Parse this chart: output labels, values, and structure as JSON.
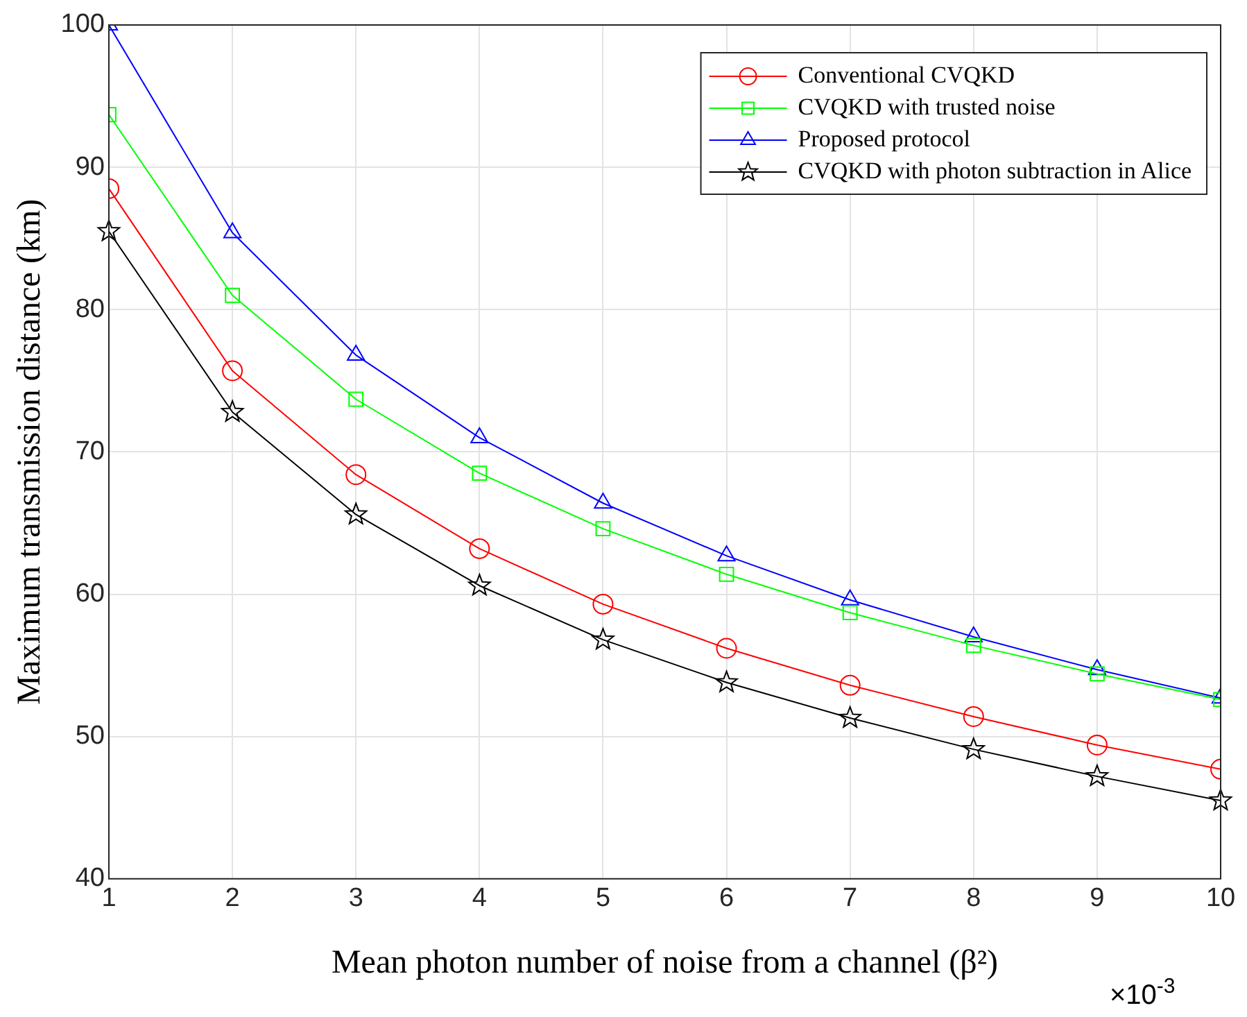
{
  "chart_data": {
    "type": "line",
    "xlabel": "Mean photon number of noise from a channel (β²)",
    "ylabel": "Maximum transmission distance (km)",
    "x": [
      1,
      2,
      3,
      4,
      5,
      6,
      7,
      8,
      9,
      10
    ],
    "series": [
      {
        "name": "Conventional CVQKD",
        "color": "#ff0000",
        "marker": "circle",
        "values": [
          88.5,
          75.7,
          68.4,
          63.2,
          59.3,
          56.2,
          53.6,
          51.4,
          49.4,
          47.7
        ]
      },
      {
        "name": "CVQKD with trusted noise",
        "color": "#00ff00",
        "marker": "square",
        "values": [
          93.7,
          81.0,
          73.7,
          68.5,
          64.6,
          61.4,
          58.7,
          56.4,
          54.4,
          52.6
        ]
      },
      {
        "name": "Proposed protocol",
        "color": "#0000ff",
        "marker": "triangle",
        "values": [
          100,
          85.4,
          76.8,
          71.0,
          66.4,
          62.7,
          59.6,
          57.0,
          54.7,
          52.7
        ]
      },
      {
        "name": "CVQKD with photon subtraction in Alice",
        "color": "#000000",
        "marker": "star",
        "values": [
          85.5,
          72.8,
          65.6,
          60.6,
          56.8,
          53.8,
          51.3,
          49.1,
          47.2,
          45.5
        ]
      }
    ],
    "xlim": [
      1,
      10
    ],
    "xticks": [
      1,
      2,
      3,
      4,
      5,
      6,
      7,
      8,
      9,
      10
    ],
    "ylim": [
      40,
      100
    ],
    "yticks": [
      40,
      50,
      60,
      70,
      80,
      90,
      100
    ],
    "annotations": [
      "×10$^{-3}$"
    ],
    "grid": true,
    "legend": "top right",
    "line_style": "solid"
  }
}
